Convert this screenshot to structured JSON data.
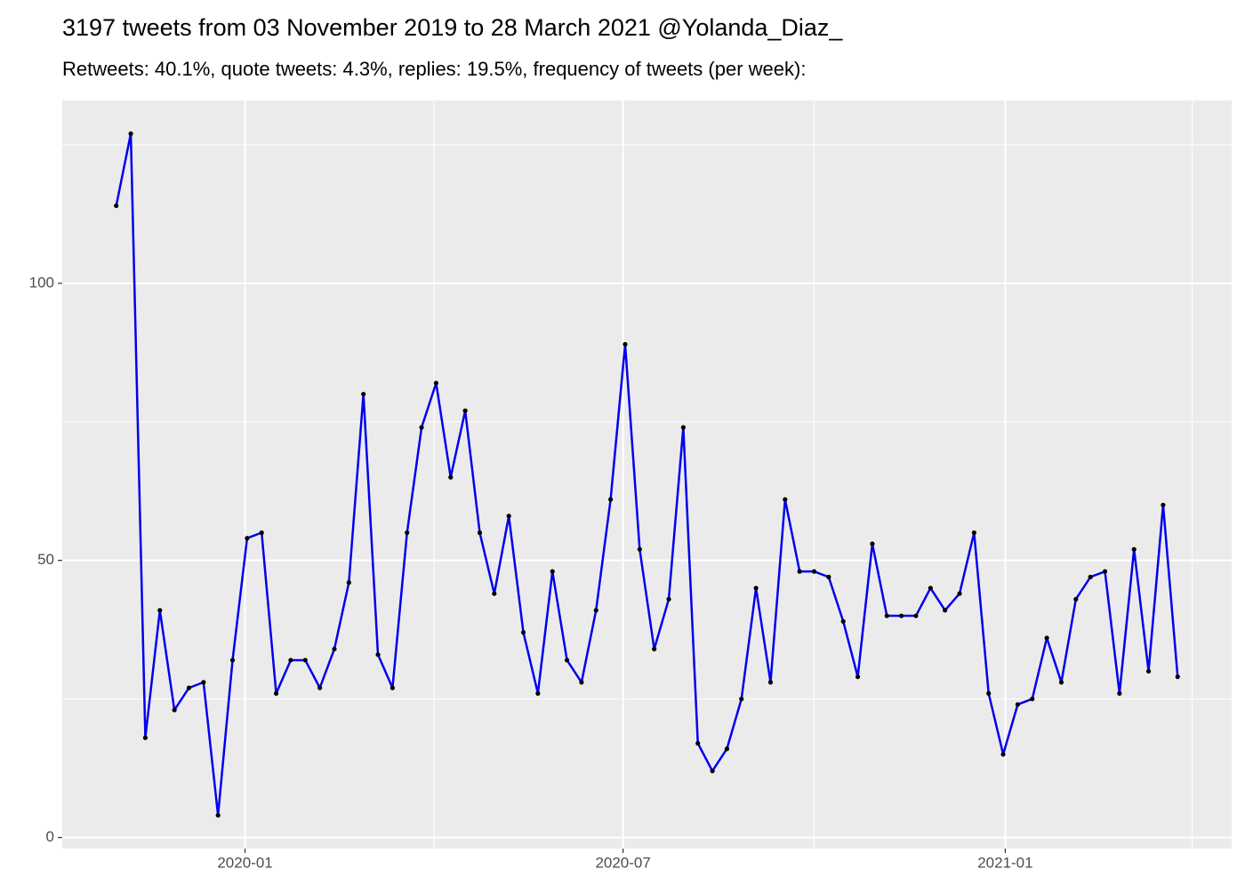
{
  "chart_data": {
    "type": "line",
    "title": "3197 tweets from 03 November 2019 to 28 March 2021 @Yolanda_Diaz_",
    "subtitle": "Retweets: 40.1%, quote tweets: 4.3%, replies: 19.5%, frequency of tweets (per week):",
    "x": [
      "2019-10-31",
      "2019-11-07",
      "2019-11-14",
      "2019-11-21",
      "2019-11-28",
      "2019-12-05",
      "2019-12-12",
      "2019-12-19",
      "2019-12-26",
      "2020-01-02",
      "2020-01-09",
      "2020-01-16",
      "2020-01-23",
      "2020-01-30",
      "2020-02-06",
      "2020-02-13",
      "2020-02-20",
      "2020-02-27",
      "2020-03-05",
      "2020-03-12",
      "2020-03-19",
      "2020-03-26",
      "2020-04-02",
      "2020-04-09",
      "2020-04-16",
      "2020-04-23",
      "2020-04-30",
      "2020-05-07",
      "2020-05-14",
      "2020-05-21",
      "2020-05-28",
      "2020-06-04",
      "2020-06-11",
      "2020-06-18",
      "2020-06-25",
      "2020-07-02",
      "2020-07-09",
      "2020-07-16",
      "2020-07-23",
      "2020-07-30",
      "2020-08-06",
      "2020-08-13",
      "2020-08-20",
      "2020-08-27",
      "2020-09-03",
      "2020-09-10",
      "2020-09-17",
      "2020-09-24",
      "2020-10-01",
      "2020-10-08",
      "2020-10-15",
      "2020-10-22",
      "2020-10-29",
      "2020-11-05",
      "2020-11-12",
      "2020-11-19",
      "2020-11-26",
      "2020-12-03",
      "2020-12-10",
      "2020-12-17",
      "2020-12-24",
      "2020-12-31",
      "2021-01-07",
      "2021-01-14",
      "2021-01-21",
      "2021-01-28",
      "2021-02-04",
      "2021-02-11",
      "2021-02-18",
      "2021-02-25",
      "2021-03-04",
      "2021-03-11",
      "2021-03-18",
      "2021-03-25"
    ],
    "series": [
      {
        "color": "#0000ee",
        "point_color": "#000000",
        "values": [
          114,
          127,
          18,
          41,
          23,
          27,
          28,
          4,
          32,
          54,
          55,
          26,
          32,
          32,
          27,
          34,
          46,
          80,
          33,
          27,
          55,
          74,
          82,
          65,
          77,
          55,
          44,
          58,
          37,
          26,
          48,
          32,
          28,
          41,
          61,
          89,
          52,
          34,
          43,
          74,
          17,
          12,
          16,
          25,
          45,
          28,
          61,
          48,
          48,
          47,
          39,
          29,
          53,
          40,
          40,
          40,
          45,
          41,
          44,
          55,
          26,
          15,
          24,
          25,
          36,
          28,
          43,
          47,
          48,
          26,
          52,
          30,
          60,
          29
        ]
      }
    ],
    "xlim": [
      "2019-10-05",
      "2021-04-20"
    ],
    "xticks": [
      {
        "value": "2020-01-01",
        "label": "2020-01"
      },
      {
        "value": "2020-07-01",
        "label": "2020-07"
      },
      {
        "value": "2021-01-01",
        "label": "2021-01"
      }
    ],
    "minor_xticks": [
      "2019-10-01",
      "2020-04-01",
      "2020-10-01",
      "2021-04-01"
    ],
    "ylim": [
      -2,
      133
    ],
    "yticks": [
      0,
      50,
      100
    ],
    "minor_yticks": [
      25,
      75,
      125
    ],
    "grid": true
  }
}
